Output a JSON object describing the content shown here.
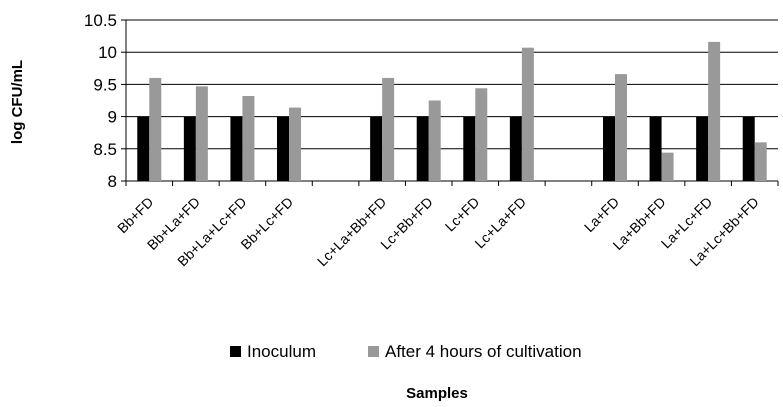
{
  "chart_data": {
    "type": "bar",
    "title": "",
    "xlabel": "Samples",
    "ylabel": "log CFU/mL",
    "ylim": [
      8,
      10.5
    ],
    "yticks": [
      8,
      8.5,
      9,
      9.5,
      10,
      10.5
    ],
    "ytick_labels": [
      "8",
      "8.5",
      "9",
      "9.5",
      "10",
      "10.5"
    ],
    "grid": "horizontal",
    "legend_position": "bottom",
    "categories": [
      "Bb+FD",
      "Bb+La+FD",
      "Bb+La+Lc+FD",
      "Bb+Lc+FD",
      "",
      "Lc+La+Bb+FD",
      "Lc+Bb+FD",
      "Lc+FD",
      "Lc+La+FD",
      "",
      "La+FD",
      "La+Bb+FD",
      "La+Lc+FD",
      "La+Lc+Bb+FD"
    ],
    "series": [
      {
        "name": "Inoculum",
        "color": "#000000",
        "values": [
          9.0,
          9.0,
          9.0,
          9.0,
          null,
          9.0,
          9.0,
          9.0,
          9.0,
          null,
          9.0,
          9.0,
          9.0,
          9.0
        ]
      },
      {
        "name": "After 4 hours of cultivation",
        "color": "#999999",
        "values": [
          9.6,
          9.47,
          9.32,
          9.14,
          null,
          9.6,
          9.25,
          9.44,
          10.07,
          null,
          9.66,
          8.44,
          10.16,
          8.6
        ]
      }
    ]
  }
}
